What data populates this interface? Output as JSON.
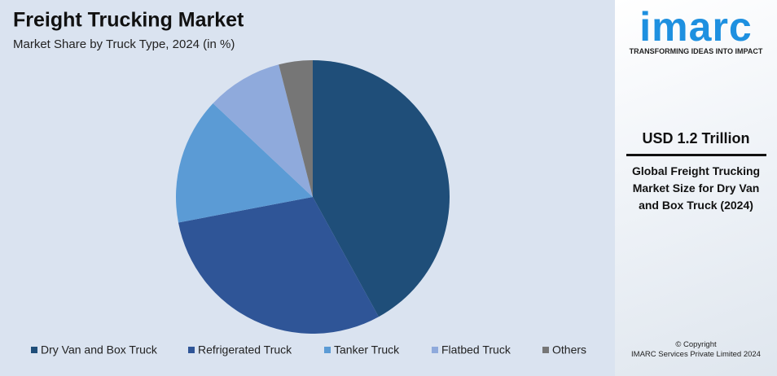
{
  "chart_data": {
    "type": "pie",
    "title": "Freight Trucking Market",
    "subtitle": "Market Share by Truck Type, 2024 (in %)",
    "categories": [
      "Dry Van and Box Truck",
      "Refrigerated Truck",
      "Tanker Truck",
      "Flatbed Truck",
      "Others"
    ],
    "values": [
      42,
      30,
      15,
      9,
      4
    ],
    "colors": [
      "#1f4e79",
      "#2f5597",
      "#5b9bd5",
      "#8faadc",
      "#767676"
    ]
  },
  "sidebar": {
    "logo": "imarc",
    "tagline": "TRANSFORMING IDEAS INTO IMPACT",
    "headline": "USD 1.2 Trillion",
    "description": "Global Freight Trucking Market Size for Dry Van and Box Truck (2024)",
    "copyright": "© Copyright",
    "company": "IMARC Services Private Limited 2024"
  }
}
